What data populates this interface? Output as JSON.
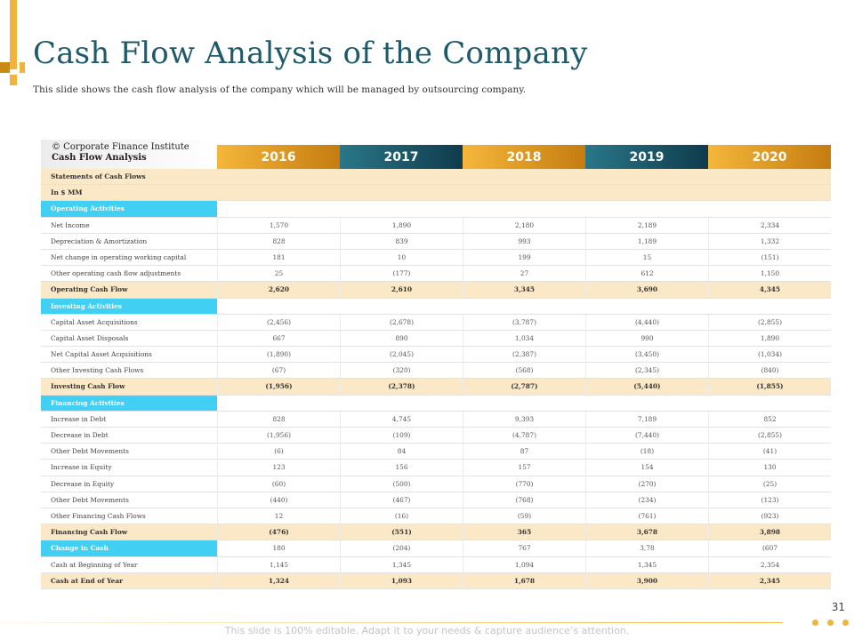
{
  "title": "Cash Flow Analysis of the Company",
  "subtitle": "This slide shows the cash flow analysis of the company which will be managed by outsourcing company.",
  "corner": {
    "line1": "© Corporate Finance Institute",
    "line2": "Cash Flow Analysis"
  },
  "years": [
    "2016",
    "2017",
    "2018",
    "2019",
    "2020"
  ],
  "rows": [
    {
      "type": "note",
      "label": "Statements of Cash Flows",
      "values": [
        "",
        "",
        "",
        "",
        ""
      ]
    },
    {
      "type": "note",
      "label": "In $ MM",
      "values": [
        "",
        "",
        "",
        "",
        ""
      ]
    },
    {
      "type": "section",
      "label": "Operating Activities",
      "values": [
        "",
        "",
        "",
        "",
        ""
      ]
    },
    {
      "type": "data",
      "label": "Net Income",
      "values": [
        "1,570",
        "1,890",
        "2,180",
        "2,189",
        "2,334"
      ]
    },
    {
      "type": "data",
      "label": "Depreciation & Amortization",
      "values": [
        "828",
        "839",
        "993",
        "1,189",
        "1,332"
      ]
    },
    {
      "type": "data",
      "label": "Net change in operating working capital",
      "values": [
        "181",
        "10",
        "199",
        "15",
        "(151)"
      ]
    },
    {
      "type": "data",
      "label": "Other operating cash flow adjustments",
      "values": [
        "25",
        "(177)",
        "27",
        "612",
        "1,150"
      ]
    },
    {
      "type": "total",
      "label": "Operating Cash Flow",
      "values": [
        "2,620",
        "2,610",
        "3,345",
        "3,690",
        "4,345"
      ]
    },
    {
      "type": "section",
      "label": "Investing Activities",
      "values": [
        "",
        "",
        "",
        "",
        ""
      ]
    },
    {
      "type": "data",
      "label": "Capital Asset Acquisitions",
      "values": [
        "(2,456)",
        "(2,678)",
        "(3,787)",
        "(4,440)",
        "(2,855)"
      ]
    },
    {
      "type": "data",
      "label": "Capital Asset Disposals",
      "values": [
        "667",
        "890",
        "1,034",
        "990",
        "1,890"
      ]
    },
    {
      "type": "data",
      "label": "Net Capital Asset Acquisitions",
      "values": [
        "(1,890)",
        "(2,045)",
        "(2,387)",
        "(3,450)",
        "(1,034)"
      ]
    },
    {
      "type": "data",
      "label": "Other Investing Cash Flows",
      "values": [
        "(67)",
        "(320)",
        "(568)",
        "(2,345)",
        "(840)"
      ]
    },
    {
      "type": "total",
      "label": "Investing Cash Flow",
      "values": [
        "(1,956)",
        "(2,378)",
        "(2,787)",
        "(5,440)",
        "(1,855)"
      ]
    },
    {
      "type": "section",
      "label": "Financing Activities",
      "values": [
        "",
        "",
        "",
        "",
        ""
      ]
    },
    {
      "type": "data",
      "label": "Increase in Debt",
      "values": [
        "828",
        "4,745",
        "9,393",
        "7,189",
        "852"
      ]
    },
    {
      "type": "data",
      "label": "Decrease in Debt",
      "values": [
        "(1,956)",
        "(109)",
        "(4,787)",
        "(7,440)",
        "(2,855)"
      ]
    },
    {
      "type": "data",
      "label": "Other Debt Movements",
      "values": [
        "(6)",
        "84",
        "87",
        "(18)",
        "(41)"
      ]
    },
    {
      "type": "data",
      "label": "Increase in Equity",
      "values": [
        "123",
        "156",
        "157",
        "154",
        "130"
      ]
    },
    {
      "type": "data",
      "label": "Decrease in Equity",
      "values": [
        "(60)",
        "(500)",
        "(770)",
        "(270)",
        "(25)"
      ]
    },
    {
      "type": "data",
      "label": "Other Debt Movements",
      "values": [
        "(440)",
        "(467)",
        "(768)",
        "(234)",
        "(123)"
      ]
    },
    {
      "type": "data",
      "label": "Other Financing Cash Flows",
      "values": [
        "12",
        "(16)",
        "(59)",
        "(761)",
        "(923)"
      ]
    },
    {
      "type": "total",
      "label": "Financing Cash Flow",
      "values": [
        "(476)",
        "(551)",
        "365",
        "3,678",
        "3,898"
      ]
    },
    {
      "type": "change",
      "label": "Change in Cash",
      "values": [
        "180",
        "(204)",
        "767",
        "3,78",
        "(607"
      ]
    },
    {
      "type": "data",
      "label": "Cash at Beginning of Year",
      "values": [
        "1,145",
        "1,345",
        "1,094",
        "1,345",
        "2,354"
      ]
    },
    {
      "type": "total",
      "label": "Cash at End of Year",
      "values": [
        "1,324",
        "1,093",
        "1,678",
        "3,900",
        "2,345"
      ]
    }
  ],
  "page_number": "31",
  "footer": "This slide is 100% editable. Adapt it to your needs & capture audience’s attention.",
  "colors": {
    "title": "#1f5a6b",
    "gold": "#f2b33d",
    "teal": "#1f5a6b",
    "section": "#41d0f3",
    "total_bg": "#fbe8c6"
  }
}
